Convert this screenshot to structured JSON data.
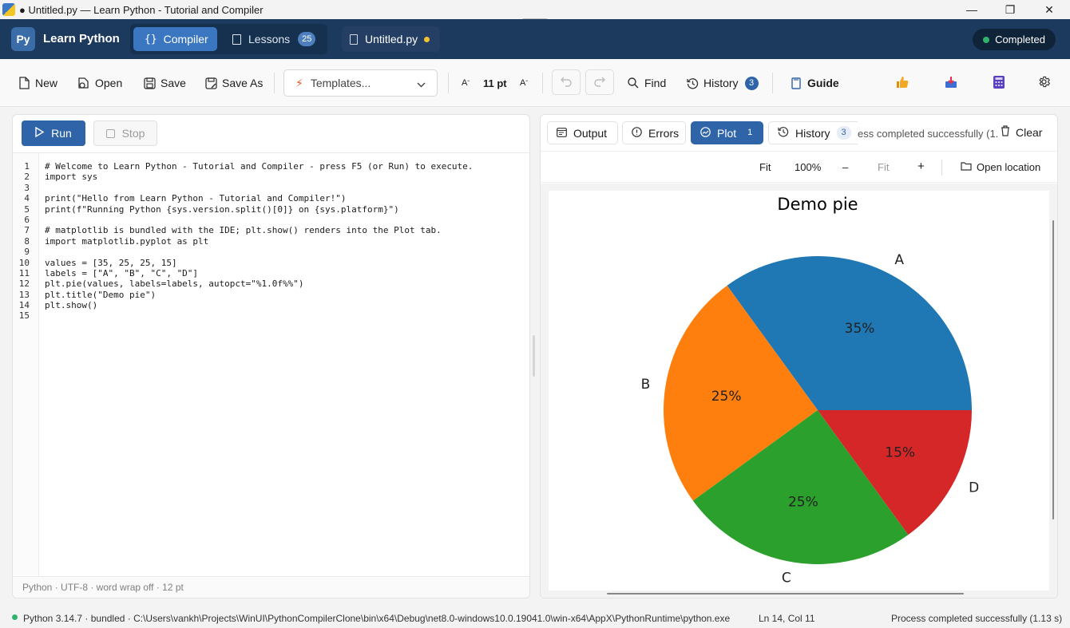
{
  "window": {
    "title": "● Untitled.py — Learn Python - Tutorial and Compiler",
    "minimize": "—",
    "maximize": "❐",
    "close": "✕"
  },
  "header": {
    "logo": "Py",
    "app_name": "Learn Python",
    "nav": [
      {
        "label": "Compiler",
        "icon": "braces-icon",
        "active": true
      },
      {
        "label": "Lessons",
        "icon": "book-icon",
        "badge": "25"
      }
    ],
    "file_tab": {
      "label": "Untitled.py",
      "modified": true
    },
    "status": "Completed"
  },
  "toolbar": {
    "new": "New",
    "open": "Open",
    "save": "Save",
    "save_as": "Save As",
    "templates": "Templates...",
    "font_size": "11 pt",
    "font_decrease": "A",
    "font_increase": "A",
    "find": "Find",
    "history": "History",
    "history_count": "3",
    "guide": "Guide"
  },
  "editor": {
    "run": "Run",
    "stop": "Stop",
    "line_numbers": [
      "1",
      "2",
      "3",
      "4",
      "5",
      "6",
      "7",
      "8",
      "9",
      "10",
      "11",
      "12",
      "13",
      "14",
      "15"
    ],
    "lines": [
      "# Welcome to Learn Python - Tutorial and Compiler - press F5 (or Run) to execute.",
      "import sys",
      "",
      "print(\"Hello from Learn Python - Tutorial and Compiler!\")",
      "print(f\"Running Python {sys.version.split()[0]} on {sys.platform}\")",
      "",
      "# matplotlib is bundled with the IDE; plt.show() renders into the Plot tab.",
      "import matplotlib.pyplot as plt",
      "",
      "values = [35, 25, 25, 15]",
      "labels = [\"A\", \"B\", \"C\", \"D\"]",
      "plt.pie(values, labels=labels, autopct=\"%1.0f%%\")",
      "plt.title(\"Demo pie\")",
      "plt.show()",
      ""
    ],
    "status": "Python · UTF-8 · word wrap off · 12 pt"
  },
  "output": {
    "tabs": [
      {
        "label": "Output",
        "icon": "terminal-icon"
      },
      {
        "label": "Errors",
        "icon": "info-icon"
      },
      {
        "label": "Plot",
        "icon": "image-icon",
        "badge": "1",
        "active": true
      },
      {
        "label": "History",
        "icon": "history-icon",
        "badge": "3"
      }
    ],
    "message_truncated": "ess completed successfully (1.",
    "clear": "Clear",
    "plot_toolbar": {
      "fit": "Fit",
      "zoom": "100%",
      "zoom_out": "–",
      "fit_dim": "Fit",
      "zoom_in": "+",
      "open_location": "Open location"
    }
  },
  "chart_data": {
    "type": "pie",
    "title": "Demo pie",
    "categories": [
      "A",
      "B",
      "C",
      "D"
    ],
    "values": [
      35,
      25,
      25,
      15
    ],
    "value_labels": [
      "35%",
      "25%",
      "25%",
      "15%"
    ],
    "colors": [
      "#1f77b4",
      "#ff7f0e",
      "#2ca02c",
      "#d62728"
    ]
  },
  "statusbar": {
    "runtime": "Python 3.14.7 · bundled · C:\\Users\\vankh\\Projects\\WinUI\\PythonCompilerClone\\bin\\x64\\Debug\\net8.0-windows10.0.19041.0\\win-x64\\AppX\\PythonRuntime\\python.exe",
    "cursor": "Ln 14, Col 11",
    "message": "Process completed successfully (1.13 s)"
  }
}
